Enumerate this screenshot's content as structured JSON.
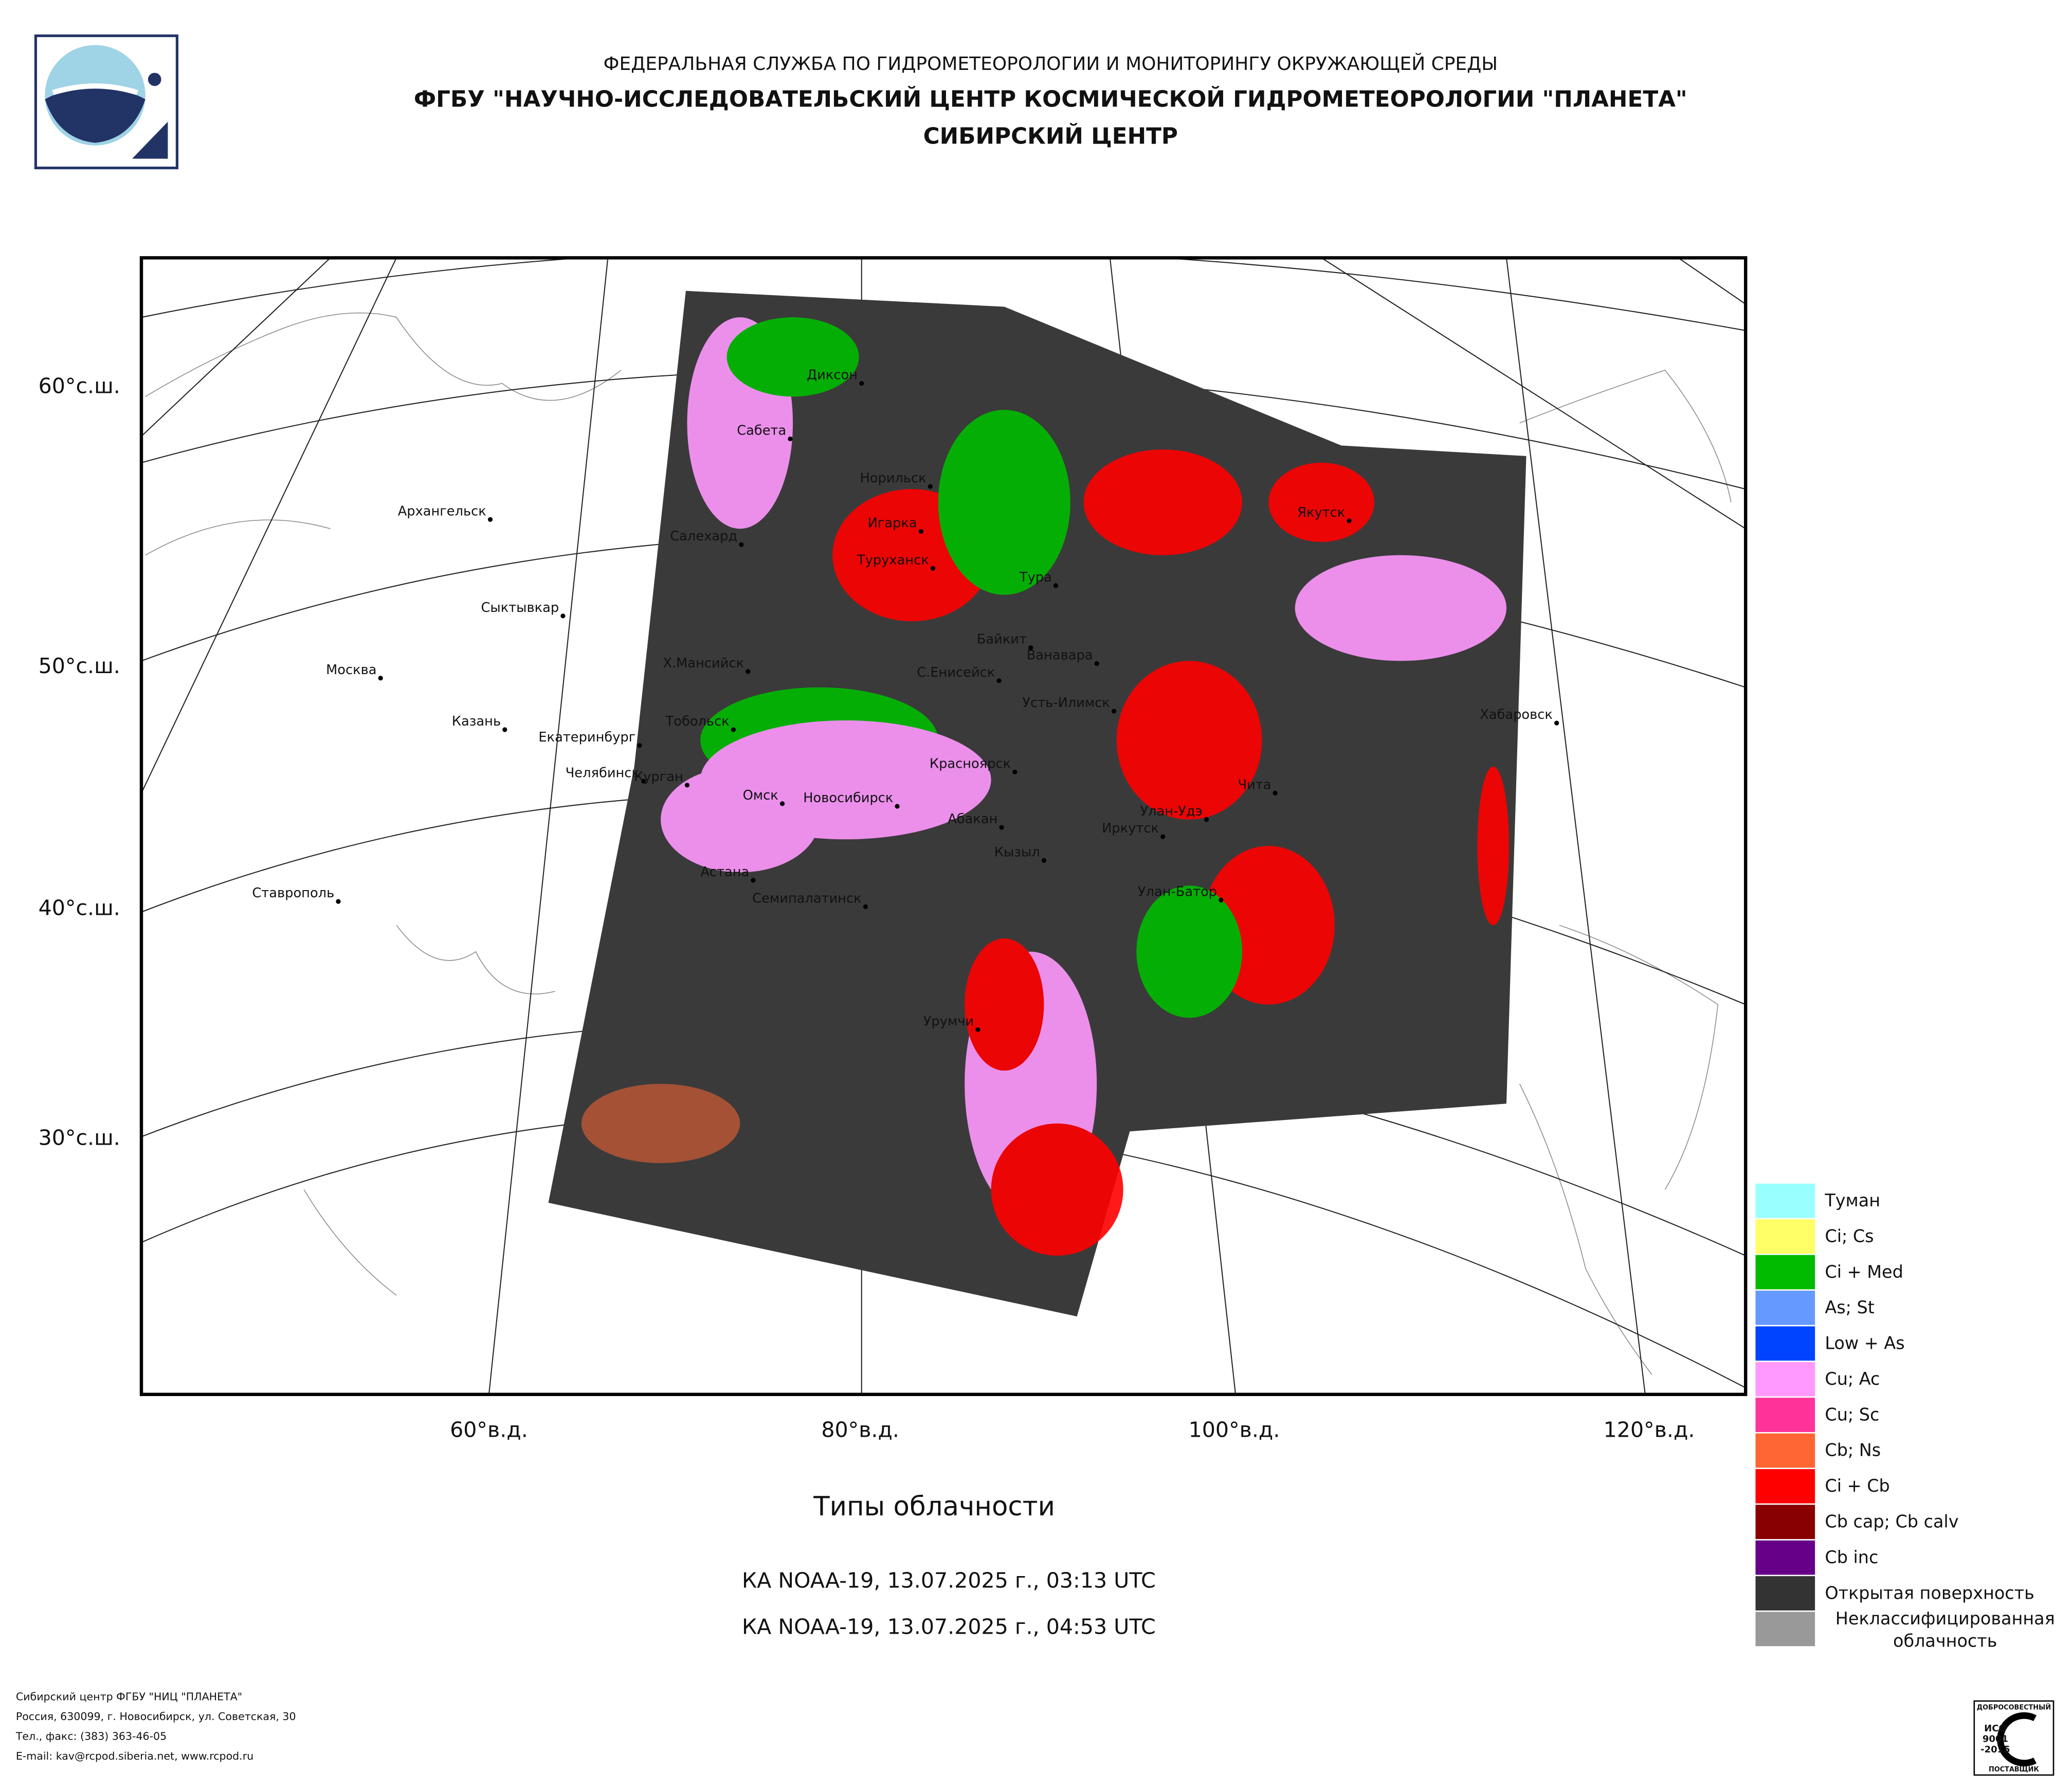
{
  "header": {
    "agency": "ФЕДЕРАЛЬНАЯ СЛУЖБА ПО ГИДРОМЕТЕОРОЛОГИИ И МОНИТОРИНГУ ОКРУЖАЮЩЕЙ СРЕДЫ",
    "center": "ФГБУ \"НАУЧНО-ИССЛЕДОВАТЕЛЬСКИЙ ЦЕНТР КОСМИЧЕСКОЙ ГИДРОМЕТЕОРОЛОГИИ \"ПЛАНЕТА\"",
    "branch": "СИБИРСКИЙ ЦЕНТР"
  },
  "map": {
    "lat_labels": [
      "60°с.ш.",
      "50°с.ш.",
      "40°с.ш.",
      "30°с.ш."
    ],
    "lon_labels": [
      "60°в.д.",
      "80°в.д.",
      "100°в.д.",
      "120°в.д."
    ],
    "cities": [
      "Диксон",
      "Сабета",
      "Норильск",
      "Архангельск",
      "Салехард",
      "Игарка",
      "Туруханск",
      "Тура",
      "Якутск",
      "Сыктывкар",
      "Байкит",
      "Ванавара",
      "Москва",
      "Х.Мансийск",
      "С.Енисейск",
      "Усть-Илимск",
      "Казань",
      "Тобольск",
      "Екатеринбург",
      "Хабаровск",
      "Красноярск",
      "Челябинск",
      "Курган",
      "Чита",
      "Омск",
      "Новосибирск",
      "Улан-Удэ",
      "Абакан",
      "Иркутск",
      "Кызыл",
      "Астана",
      "Ставрополь",
      "Семипалатинск",
      "Улан-Батор",
      "Урумчи"
    ]
  },
  "legend": [
    {
      "label": "Туман",
      "color": "#99ffff"
    },
    {
      "label": "Ci; Cs",
      "color": "#ffff66"
    },
    {
      "label": "Ci + Med",
      "color": "#00bb00"
    },
    {
      "label": "As; St",
      "color": "#6699ff"
    },
    {
      "label": "Low + As",
      "color": "#0044ff"
    },
    {
      "label": "Cu; Ac",
      "color": "#ff99ff"
    },
    {
      "label": "Cu; Sc",
      "color": "#ff3399"
    },
    {
      "label": "Cb; Ns",
      "color": "#ff6633"
    },
    {
      "label": "Ci + Cb",
      "color": "#ff0000"
    },
    {
      "label": "Cb cap; Cb calv",
      "color": "#880000"
    },
    {
      "label": "Cb inc",
      "color": "#660088"
    },
    {
      "label": "Открытая поверхность",
      "color": "#333333"
    },
    {
      "label": "Неклассифицированная облачность",
      "color": "#999999"
    }
  ],
  "title": "Типы облачности",
  "passes": [
    "КА NOAA-19, 13.07.2025 г., 03:13 UTC",
    "КА NOAA-19, 13.07.2025 г., 04:53 UTC"
  ],
  "footer": [
    "Сибирский центр ФГБУ \"НИЦ \"ПЛАНЕТА\"",
    "Россия, 630099, г. Новосибирск, ул. Советская, 30",
    "Тел., факс: (383) 363-46-05",
    "E-mail: kav@rcpod.siberia.net, www.rcpod.ru"
  ],
  "badge": [
    "ДОБРОСОВЕСТНЫЙ",
    "ИСО",
    "9001",
    "-2015",
    "ПОСТАВЩИК"
  ]
}
